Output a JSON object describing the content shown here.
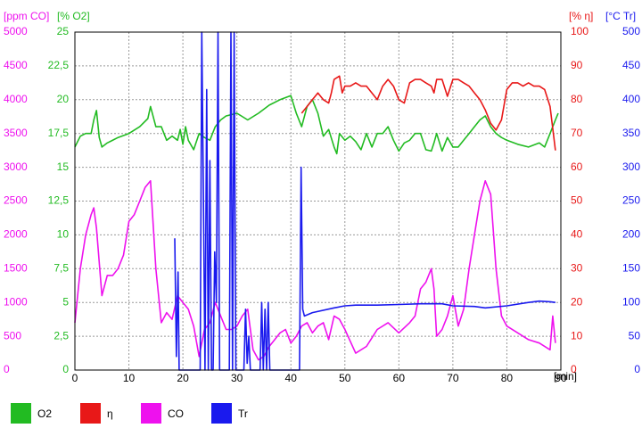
{
  "colors": {
    "O2": "#22bb22",
    "eta": "#e81818",
    "CO": "#ee11ee",
    "Tr": "#1a1aee",
    "grid": "#999999"
  },
  "chart_data": {
    "type": "line",
    "headers": {
      "co": "[ppm CO]",
      "o2": "[% O2]",
      "eta": "[% η]",
      "tr": "[°C Tr]",
      "x": "[min]"
    },
    "xlim": [
      0,
      90
    ],
    "x_ticks": [
      "0",
      "10",
      "20",
      "30",
      "40",
      "50",
      "60",
      "70",
      "80",
      "90"
    ],
    "axes": {
      "co": {
        "range": [
          0,
          5000
        ],
        "ticks": [
          "0",
          "500",
          "1000",
          "1500",
          "2000",
          "2500",
          "3000",
          "3500",
          "4000",
          "4500",
          "5000"
        ]
      },
      "o2": {
        "range": [
          0,
          25
        ],
        "ticks": [
          "0",
          "2,5",
          "5",
          "7,5",
          "10",
          "12,5",
          "15",
          "17,5",
          "20",
          "22,5",
          "25"
        ]
      },
      "eta": {
        "range": [
          0,
          100
        ],
        "ticks": [
          "0",
          "10",
          "20",
          "30",
          "40",
          "50",
          "60",
          "70",
          "80",
          "90",
          "100"
        ]
      },
      "tr": {
        "range": [
          0,
          500
        ],
        "ticks": [
          "0",
          "50",
          "100",
          "150",
          "200",
          "250",
          "300",
          "350",
          "400",
          "450",
          "500"
        ]
      }
    },
    "grid": true,
    "legend": {
      "position": "bottom",
      "items": [
        {
          "label": "O2",
          "color": "#22bb22"
        },
        {
          "label": "η",
          "color": "#e81818"
        },
        {
          "label": "CO",
          "color": "#ee11ee"
        },
        {
          "label": "Tr",
          "color": "#1a1aee"
        }
      ]
    },
    "series": [
      {
        "name": "O2",
        "axis": "o2",
        "color": "#22bb22",
        "x": [
          0,
          1,
          2,
          3,
          3.5,
          4,
          4.5,
          5,
          6,
          8,
          10,
          12,
          13.5,
          14,
          15,
          16,
          17,
          18,
          19,
          19.5,
          20,
          20.5,
          21,
          22,
          23,
          24,
          25,
          26,
          27,
          28,
          30,
          32,
          34,
          36,
          38,
          40,
          41,
          42,
          43,
          44,
          45,
          46,
          47,
          48,
          48.5,
          49,
          50,
          51,
          52,
          53,
          54,
          55,
          56,
          57,
          58,
          59,
          60,
          61,
          62,
          63,
          64,
          65,
          66,
          66.5,
          67,
          68,
          69,
          70,
          71,
          72,
          73,
          74,
          75,
          76,
          77,
          78,
          79,
          80,
          82,
          84,
          86,
          87,
          88,
          89,
          89.5
        ],
        "y": [
          16.5,
          17.3,
          17.5,
          17.5,
          18.5,
          19.2,
          17.2,
          16.5,
          16.8,
          17.2,
          17.5,
          18.0,
          18.6,
          19.5,
          18.0,
          18.0,
          17.0,
          17.3,
          17.0,
          17.8,
          16.7,
          18.0,
          17.0,
          16.3,
          17.5,
          17.2,
          17.0,
          18.0,
          18.5,
          18.8,
          19.0,
          18.5,
          19.0,
          19.6,
          20.0,
          20.3,
          19.0,
          18.0,
          19.5,
          20.0,
          19.0,
          17.3,
          17.8,
          16.5,
          16.0,
          17.5,
          17.0,
          17.3,
          16.9,
          16.3,
          17.5,
          16.5,
          17.5,
          17.5,
          18.0,
          17.0,
          16.2,
          16.8,
          17.0,
          17.5,
          17.5,
          16.3,
          16.2,
          16.8,
          17.5,
          16.2,
          17.2,
          16.5,
          16.5,
          17.0,
          17.5,
          18.0,
          18.5,
          18.8,
          18.0,
          17.5,
          17.2,
          17.0,
          16.7,
          16.5,
          16.8,
          16.5,
          17.5,
          18.5,
          19.0
        ]
      },
      {
        "name": "η",
        "axis": "eta",
        "color": "#e81818",
        "x": [
          42,
          43,
          44,
          45,
          46,
          47,
          47.5,
          48,
          49,
          49.5,
          50,
          51,
          52,
          53,
          54,
          55,
          56,
          57,
          58,
          59,
          60,
          61,
          62,
          63,
          64,
          65,
          66,
          66.5,
          67,
          68,
          69,
          70,
          71,
          72,
          73,
          74,
          75,
          76,
          77,
          78,
          79,
          80,
          81,
          82,
          83,
          84,
          85,
          86,
          87,
          88,
          89
        ],
        "y": [
          76,
          78,
          80,
          82,
          80,
          79,
          82,
          86,
          87,
          82,
          84,
          84,
          85,
          84,
          84,
          82,
          80,
          84,
          86,
          84,
          80,
          79,
          85,
          86,
          86,
          85,
          84,
          82,
          86,
          86,
          81,
          86,
          86,
          85,
          84,
          82,
          80,
          77,
          73,
          71,
          74,
          83,
          85,
          85,
          84,
          85,
          84,
          84,
          83,
          78,
          65
        ]
      },
      {
        "name": "CO",
        "axis": "co",
        "color": "#ee11ee",
        "x": [
          0,
          1,
          2,
          3,
          3.5,
          4,
          5,
          6,
          7,
          8,
          9,
          10,
          11,
          12,
          13,
          14,
          15,
          16,
          17,
          18,
          19,
          20,
          21,
          22,
          23,
          24,
          25,
          26,
          27,
          28,
          29,
          30,
          31,
          32,
          33,
          34,
          35,
          36,
          37,
          38,
          39,
          40,
          41,
          42,
          43,
          44,
          45,
          46,
          47,
          48,
          49,
          50,
          52,
          54,
          56,
          58,
          60,
          62,
          63,
          64,
          65,
          66,
          66.5,
          67,
          68,
          69,
          70,
          71,
          72,
          73,
          74,
          75,
          76,
          77,
          78,
          79,
          80,
          82,
          84,
          86,
          88,
          88.5,
          89
        ],
        "y": [
          700,
          1500,
          2000,
          2300,
          2400,
          2100,
          1100,
          1400,
          1400,
          1500,
          1700,
          2200,
          2300,
          2500,
          2700,
          2800,
          1500,
          700,
          850,
          750,
          1100,
          1000,
          900,
          650,
          200,
          600,
          700,
          1000,
          800,
          600,
          600,
          650,
          800,
          900,
          300,
          150,
          200,
          350,
          450,
          550,
          600,
          400,
          500,
          650,
          700,
          550,
          650,
          700,
          450,
          800,
          750,
          600,
          250,
          350,
          600,
          700,
          550,
          700,
          800,
          1200,
          1300,
          1500,
          1200,
          500,
          600,
          800,
          1100,
          650,
          900,
          1500,
          2000,
          2500,
          2800,
          2600,
          1500,
          800,
          650,
          550,
          450,
          400,
          300,
          800,
          400
        ]
      },
      {
        "name": "Tr",
        "axis": "tr",
        "color": "#1a1aee",
        "x": [
          18.5,
          18.8,
          19.1,
          19.3,
          19.6,
          19.9,
          20.2,
          20.5,
          20.8,
          21.1,
          21.4,
          21.7,
          22.0,
          22.3,
          22.6,
          22.9,
          23.2,
          23.5,
          23.8,
          24.1,
          24.4,
          24.7,
          25.0,
          25.3,
          25.6,
          25.9,
          26.2,
          26.5,
          26.8,
          27.1,
          27.4,
          27.7,
          28.0,
          28.3,
          28.6,
          28.9,
          29.2,
          29.5,
          29.8,
          30.1,
          30.4,
          30.7,
          31.0,
          31.3,
          31.6,
          31.9,
          32.2,
          32.5,
          32.8,
          33.1,
          33.4,
          33.7,
          34.0,
          34.3,
          34.6,
          34.9,
          35.2,
          35.5,
          35.8,
          36.1,
          41.6,
          41.9,
          42.2,
          42.5,
          44,
          48,
          50,
          52,
          56,
          60,
          64,
          66,
          68,
          70,
          74,
          76,
          80,
          84,
          86,
          88,
          89
        ],
        "y": [
          195,
          20,
          145,
          0,
          0,
          0,
          0,
          0,
          0,
          0,
          0,
          0,
          0,
          0,
          0,
          0,
          0,
          500,
          260,
          0,
          415,
          0,
          310,
          0,
          0,
          175,
          100,
          500,
          0,
          0,
          0,
          0,
          0,
          0,
          0,
          500,
          0,
          500,
          0,
          0,
          0,
          0,
          0,
          0,
          90,
          10,
          50,
          0,
          0,
          0,
          0,
          0,
          0,
          0,
          100,
          0,
          90,
          0,
          100,
          0,
          0,
          300,
          90,
          80,
          85,
          92,
          95,
          96,
          96,
          97,
          98,
          98,
          98,
          95,
          94,
          92,
          95,
          100,
          102,
          101,
          100
        ]
      }
    ]
  }
}
